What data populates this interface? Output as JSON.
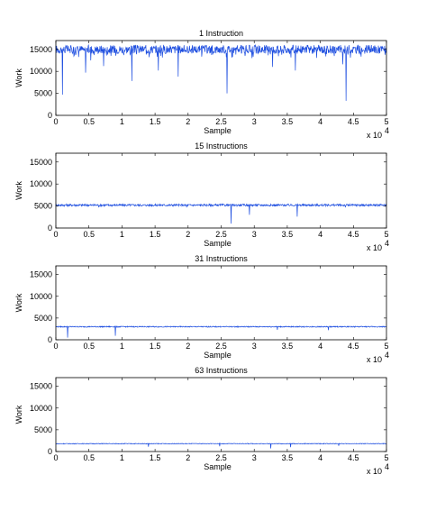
{
  "chart_data": [
    {
      "type": "line",
      "title": "1 Instruction",
      "xlabel": "Sample",
      "ylabel": "Work",
      "x_multiplier_label": "x 10",
      "x_multiplier_exp": "4",
      "xlim": [
        0,
        50000
      ],
      "ylim": [
        0,
        17000
      ],
      "xticks": [
        0,
        0.5,
        1,
        1.5,
        2,
        2.5,
        3,
        3.5,
        4,
        4.5,
        5
      ],
      "yticks": [
        0,
        5000,
        10000,
        15000
      ],
      "color": "#1f4fe0",
      "series": [
        {
          "baseline": 15000,
          "noise_band": [
            13000,
            16300
          ],
          "dips": [
            [
              1000,
              4700
            ],
            [
              4500,
              9700
            ],
            [
              5300,
              12500
            ],
            [
              7200,
              11200
            ],
            [
              11500,
              7800
            ],
            [
              15500,
              10200
            ],
            [
              18500,
              8800
            ],
            [
              25900,
              5000
            ],
            [
              32800,
              11000
            ],
            [
              36200,
              10200
            ],
            [
              43400,
              11600
            ],
            [
              43900,
              3300
            ]
          ]
        }
      ]
    },
    {
      "type": "line",
      "title": "15 Instructions",
      "xlabel": "Sample",
      "ylabel": "Work",
      "x_multiplier_label": "x 10",
      "x_multiplier_exp": "4",
      "xlim": [
        0,
        50000
      ],
      "ylim": [
        0,
        17000
      ],
      "xticks": [
        0,
        0.5,
        1,
        1.5,
        2,
        2.5,
        3,
        3.5,
        4,
        4.5,
        5
      ],
      "yticks": [
        0,
        5000,
        10000,
        15000
      ],
      "color": "#1f4fe0",
      "series": [
        {
          "baseline": 5200,
          "noise_band": [
            4900,
            5500
          ],
          "dips": [
            [
              6500,
              4700
            ],
            [
              19800,
              4700
            ],
            [
              26500,
              1000
            ],
            [
              29300,
              3000
            ],
            [
              36500,
              2600
            ],
            [
              43800,
              4700
            ]
          ]
        }
      ]
    },
    {
      "type": "line",
      "title": "31 Instructions",
      "xlabel": "Sample",
      "ylabel": "Work",
      "x_multiplier_label": "x 10",
      "x_multiplier_exp": "4",
      "xlim": [
        0,
        50000
      ],
      "ylim": [
        0,
        17000
      ],
      "xticks": [
        0,
        0.5,
        1,
        1.5,
        2,
        2.5,
        3,
        3.5,
        4,
        4.5,
        5
      ],
      "yticks": [
        0,
        5000,
        10000,
        15000
      ],
      "color": "#1f4fe0",
      "series": [
        {
          "baseline": 3000,
          "noise_band": [
            2850,
            3150
          ],
          "dips": [
            [
              1800,
              500
            ],
            [
              9000,
              900
            ],
            [
              33500,
              2300
            ],
            [
              41200,
              2200
            ]
          ]
        }
      ]
    },
    {
      "type": "line",
      "title": "63 Instructions",
      "xlabel": "Sample",
      "ylabel": "Work",
      "x_multiplier_label": "x 10",
      "x_multiplier_exp": "4",
      "xlim": [
        0,
        50000
      ],
      "ylim": [
        0,
        17000
      ],
      "xticks": [
        0,
        0.5,
        1,
        1.5,
        2,
        2.5,
        3,
        3.5,
        4,
        4.5,
        5
      ],
      "yticks": [
        0,
        5000,
        10000,
        15000
      ],
      "color": "#1f4fe0",
      "series": [
        {
          "baseline": 1800,
          "noise_band": [
            1700,
            1900
          ],
          "dips": [
            [
              14000,
              1100
            ],
            [
              24800,
              1200
            ],
            [
              32500,
              700
            ],
            [
              35500,
              1000
            ],
            [
              42800,
              1300
            ]
          ]
        }
      ]
    }
  ]
}
